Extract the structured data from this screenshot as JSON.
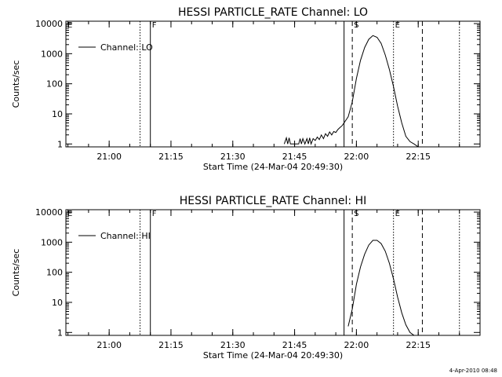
{
  "chart_data": [
    {
      "type": "line",
      "title": "HESSI PARTICLE_RATE Channel: LO",
      "xlabel": "Start Time (24-Mar-04 20:49:30)",
      "ylabel": "Counts/sec",
      "yscale": "log",
      "xlim": [
        "20:49:30",
        "22:30:00"
      ],
      "ylim": [
        0.8,
        12000
      ],
      "x_ticks": [
        "21:00",
        "21:15",
        "21:30",
        "21:45",
        "22:00",
        "22:15"
      ],
      "y_ticks": [
        "1",
        "10",
        "100",
        "1000",
        "10000"
      ],
      "legend": {
        "label": "Channel: LO",
        "position": "top-left"
      },
      "event_markers": [
        {
          "time": "20:49:30",
          "label": "E",
          "style": "dotted"
        },
        {
          "time": "21:07:30",
          "label": "",
          "style": "dotted"
        },
        {
          "time": "21:10:00",
          "label": "F",
          "style": "solid"
        },
        {
          "time": "21:57:00",
          "label": "",
          "style": "solid"
        },
        {
          "time": "21:59:00",
          "label": "S",
          "style": "dashed"
        },
        {
          "time": "22:09:00",
          "label": "E",
          "style": "dotted"
        },
        {
          "time": "22:16:00",
          "label": "",
          "style": "dashed"
        },
        {
          "time": "22:25:00",
          "label": "",
          "style": "dotted"
        }
      ],
      "series": [
        {
          "name": "Channel: LO",
          "x": [
            "21:42:30",
            "21:43:00",
            "21:43:20",
            "21:43:40",
            "21:44:00",
            "21:46:00",
            "21:46:20",
            "21:46:40",
            "21:47:00",
            "21:47:30",
            "21:48:00",
            "21:48:20",
            "21:48:40",
            "21:49:00",
            "21:49:30",
            "21:50:00",
            "21:50:30",
            "21:51:00",
            "21:51:30",
            "21:52:00",
            "21:52:30",
            "21:53:00",
            "21:53:30",
            "21:54:00",
            "21:54:30",
            "21:55:00",
            "21:55:30",
            "21:56:00",
            "21:56:30",
            "21:57:00",
            "21:58:00",
            "21:59:00",
            "22:00:00",
            "22:01:00",
            "22:02:00",
            "22:03:00",
            "22:04:00",
            "22:05:00",
            "22:06:00",
            "22:07:00",
            "22:08:00",
            "22:09:00",
            "22:10:00",
            "22:11:00",
            "22:12:00",
            "22:13:00",
            "22:14:00",
            "22:15:00"
          ],
          "y": [
            1,
            1.6,
            1,
            1.6,
            1,
            1,
            1.5,
            1,
            1.5,
            1,
            1.5,
            1,
            1.6,
            1,
            1.5,
            1.3,
            1.7,
            1.4,
            2,
            1.5,
            2.2,
            1.8,
            2.5,
            2,
            2.6,
            2.4,
            3,
            3.5,
            4,
            5,
            8,
            25,
            150,
            600,
            1600,
            3000,
            4000,
            3500,
            2200,
            900,
            300,
            80,
            18,
            5,
            1.8,
            1.2,
            1,
            0.8
          ]
        }
      ]
    },
    {
      "type": "line",
      "title": "HESSI PARTICLE_RATE Channel: HI",
      "xlabel": "Start Time (24-Mar-04 20:49:30)",
      "ylabel": "Counts/sec",
      "yscale": "log",
      "xlim": [
        "20:49:30",
        "22:30:00"
      ],
      "ylim": [
        0.8,
        12000
      ],
      "x_ticks": [
        "21:00",
        "21:15",
        "21:30",
        "21:45",
        "22:00",
        "22:15"
      ],
      "y_ticks": [
        "1",
        "10",
        "100",
        "1000",
        "10000"
      ],
      "legend": {
        "label": "Channel: HI",
        "position": "top-left"
      },
      "event_markers": [
        {
          "time": "20:49:30",
          "label": "E",
          "style": "dotted"
        },
        {
          "time": "21:07:30",
          "label": "",
          "style": "dotted"
        },
        {
          "time": "21:10:00",
          "label": "F",
          "style": "solid"
        },
        {
          "time": "21:57:00",
          "label": "",
          "style": "solid"
        },
        {
          "time": "21:59:00",
          "label": "S",
          "style": "dashed"
        },
        {
          "time": "22:09:00",
          "label": "E",
          "style": "dotted"
        },
        {
          "time": "22:16:00",
          "label": "",
          "style": "dashed"
        },
        {
          "time": "22:25:00",
          "label": "",
          "style": "dotted"
        }
      ],
      "series": [
        {
          "name": "Channel: HI",
          "x": [
            "21:58:00",
            "21:59:00",
            "22:00:00",
            "22:01:00",
            "22:02:00",
            "22:03:00",
            "22:04:00",
            "22:05:00",
            "22:06:00",
            "22:07:00",
            "22:08:00",
            "22:09:00",
            "22:10:00",
            "22:11:00",
            "22:12:00",
            "22:13:00",
            "22:14:00"
          ],
          "y": [
            1.6,
            6,
            40,
            150,
            400,
            800,
            1150,
            1150,
            900,
            500,
            200,
            60,
            15,
            4.5,
            1.8,
            1,
            0.8
          ]
        }
      ]
    }
  ],
  "footer": {
    "timestamp": "4-Apr-2010 08:48"
  }
}
